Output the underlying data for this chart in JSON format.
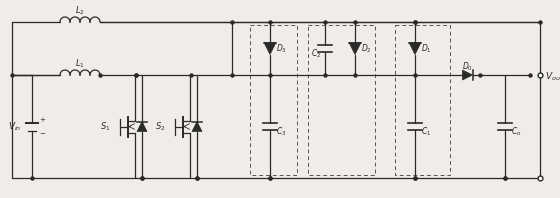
{
  "bg_color": "#f0ede8",
  "line_color": "#2a2a2a",
  "dashed_color": "#555555",
  "lw": 0.9,
  "fig_width": 5.6,
  "fig_height": 1.98,
  "dpi": 100,
  "labels": {
    "Vin": "$V_{in}$",
    "L1": "$L_1$",
    "L2": "$L_2$",
    "S1": "$S_1$",
    "S2": "$S_2$",
    "D3": "$D_3$",
    "D2": "$D_2$",
    "D1": "$D_1$",
    "D0": "$D_0$",
    "C3": "$C_3$",
    "C2": "$C_2$",
    "C1": "$C_1$",
    "Co": "$C_o$",
    "Vout": "$V_{out}$"
  }
}
